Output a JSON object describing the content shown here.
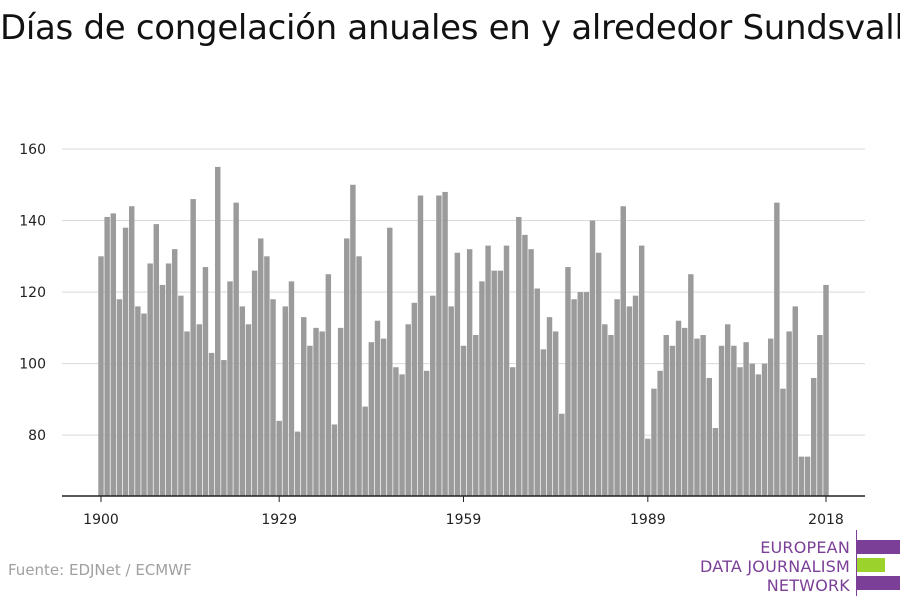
{
  "title": "Días de congelación anuales en y alrededor Sundsvall",
  "source": "Fuente: EDJNet / ECMWF",
  "logo": {
    "lines": [
      "EUROPEAN",
      "DATA JOURNALISM",
      "NETWORK"
    ],
    "colors": {
      "purple": "#7b3f98",
      "green": "#9bd22b"
    }
  },
  "colors": {
    "bar": "#9b9b9b",
    "grid": "#d9d9d9",
    "axis": "#222222"
  },
  "chart_data": {
    "type": "bar",
    "x_start": 1900,
    "x_end": 2018,
    "x_ticks": [
      1900,
      1929,
      1959,
      1989,
      2018
    ],
    "y_ticks": [
      80,
      100,
      120,
      140,
      160
    ],
    "ylim": [
      63,
      160
    ],
    "grid": true,
    "values": [
      130,
      141,
      142,
      118,
      138,
      144,
      116,
      114,
      128,
      139,
      122,
      128,
      132,
      119,
      109,
      146,
      111,
      127,
      103,
      155,
      101,
      123,
      145,
      116,
      111,
      126,
      135,
      130,
      118,
      84,
      116,
      123,
      81,
      113,
      105,
      110,
      109,
      125,
      83,
      110,
      135,
      150,
      130,
      88,
      106,
      112,
      107,
      138,
      99,
      97,
      111,
      117,
      147,
      98,
      119,
      147,
      148,
      116,
      131,
      105,
      132,
      108,
      123,
      133,
      126,
      126,
      133,
      99,
      141,
      136,
      132,
      121,
      104,
      113,
      109,
      86,
      127,
      118,
      120,
      120,
      140,
      131,
      111,
      108,
      118,
      144,
      116,
      119,
      133,
      79,
      93,
      98,
      108,
      105,
      112,
      110,
      125,
      107,
      108,
      96,
      82,
      105,
      111,
      105,
      99,
      106,
      100,
      97,
      100,
      107,
      145,
      93,
      109,
      116,
      74,
      74,
      96,
      108,
      122
    ]
  }
}
